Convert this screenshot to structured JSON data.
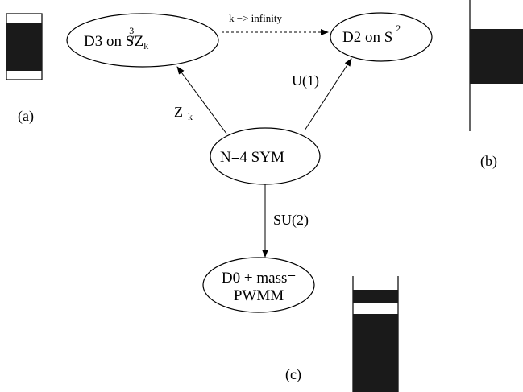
{
  "nodes": {
    "d3": {
      "label": "D3 on S",
      "sup": "3",
      "suffix": "/Z",
      "sub": "k"
    },
    "d2": {
      "label": "D2 on S",
      "sup": "2"
    },
    "sym": {
      "label": "N=4 SYM"
    },
    "d0": {
      "line1": "D0 + mass=",
      "line2": "PWMM"
    }
  },
  "edges": {
    "k_limit": "k −> infinity",
    "u1": "U(1)",
    "zk_main": "Z",
    "zk_sub": "k",
    "su2": "SU(2)"
  },
  "panels": {
    "a": "(a)",
    "b": "(b)",
    "c": "(c)"
  },
  "colors": {
    "ink": "#000000",
    "fill": "#1a1a1a",
    "paper": "#ffffff"
  }
}
